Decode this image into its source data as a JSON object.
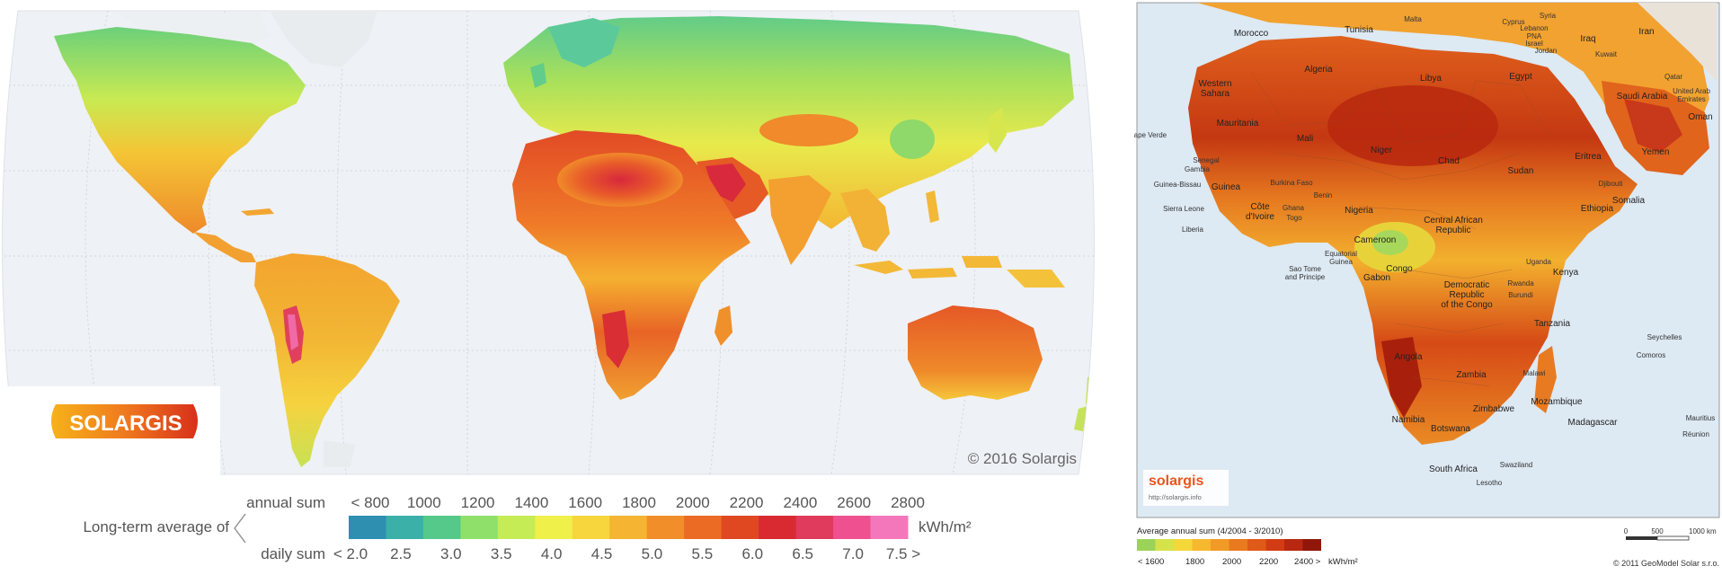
{
  "world_map": {
    "copyright": "© 2016 Solargis",
    "logo_text": "SOLARGIS",
    "legend": {
      "title": "Long-term average of",
      "annual_label": "annual sum",
      "daily_label": "daily sum",
      "unit": "kWh/m²",
      "annual_ticks": [
        "< 800",
        "1000",
        "1200",
        "1400",
        "1600",
        "1800",
        "2000",
        "2200",
        "2400",
        "2600",
        "2800"
      ],
      "daily_ticks": [
        "< 2.0",
        "2.5",
        "3.0",
        "3.5",
        "4.0",
        "4.5",
        "5.0",
        "5.5",
        "6.0",
        "6.5",
        "7.0",
        "7.5 >"
      ],
      "colors": [
        "#2f8fb0",
        "#3ab0a8",
        "#55c98a",
        "#8ee06a",
        "#c5ec55",
        "#f0f04a",
        "#f6d63c",
        "#f5b432",
        "#f18e2a",
        "#eb6a24",
        "#e04822",
        "#d82a30",
        "#e03a5c",
        "#ef5090",
        "#f577bb"
      ]
    }
  },
  "africa_map": {
    "logo_text": "solargis",
    "logo_url": "http://solargis.info",
    "legend": {
      "title": "Average annual sum (4/2004 - 3/2010)",
      "ticks": [
        "< 1600",
        "1800",
        "2000",
        "2200",
        "2400 >"
      ],
      "unit": "kWh/m²",
      "colors": [
        "#9bd35a",
        "#d6e24a",
        "#f4d83a",
        "#f6b82e",
        "#f29a26",
        "#ea7a1e",
        "#e05a18",
        "#d23c14",
        "#b82810",
        "#8f1608"
      ]
    },
    "scale_labels": [
      "0",
      "500",
      "1000 km"
    ],
    "copyright": "© 2011 GeoModel Solar s.r.o.",
    "labels": [
      "Morocco",
      "Tunisia",
      "Malta",
      "Cyprus",
      "Syria",
      "Lebanon",
      "PNA",
      "Israel",
      "Jordan",
      "Iraq",
      "Iran",
      "Kuwait",
      "Algeria",
      "Libya",
      "Egypt",
      "Western Sahara",
      "Saudi Arabia",
      "Qatar",
      "United Arab Emirates",
      "Oman",
      "Mauritania",
      "Mali",
      "Niger",
      "Chad",
      "Sudan",
      "Eritrea",
      "Yemen",
      "Cape Verde",
      "Senegal",
      "Gambia",
      "Guinea-Bissau",
      "Guinea",
      "Burkina Faso",
      "Benin",
      "Djibouti",
      "Somalia",
      "Ethiopia",
      "Sierra Leone",
      "Côte d'Ivoire",
      "Ghana",
      "Togo",
      "Nigeria",
      "Central African Republic",
      "Liberia",
      "Cameroon",
      "Equatorial Guinea",
      "Sao Tome and Principe",
      "Congo",
      "Gabon",
      "Uganda",
      "Kenya",
      "Democratic Republic of the Congo",
      "Rwanda",
      "Burundi",
      "Tanzania",
      "Seychelles",
      "Comoros",
      "Angola",
      "Zambia",
      "Malawi",
      "Mozambique",
      "Zimbabwe",
      "Madagascar",
      "Mauritius",
      "Réunion",
      "Namibia",
      "Botswana",
      "Swaziland",
      "South Africa",
      "Lesotho"
    ]
  }
}
